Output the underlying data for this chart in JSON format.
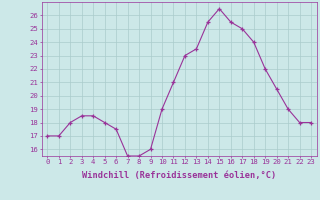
{
  "x": [
    0,
    1,
    2,
    3,
    4,
    5,
    6,
    7,
    8,
    9,
    10,
    11,
    12,
    13,
    14,
    15,
    16,
    17,
    18,
    19,
    20,
    21,
    22,
    23
  ],
  "y": [
    17,
    17,
    18,
    18.5,
    18.5,
    18,
    17.5,
    15.5,
    15.5,
    16,
    19,
    21,
    23,
    23.5,
    25.5,
    26.5,
    25.5,
    25,
    24,
    22,
    20.5,
    19,
    18,
    18
  ],
  "line_color": "#993399",
  "marker_color": "#993399",
  "bg_color": "#cce8e8",
  "grid_color": "#aacccc",
  "xlabel": "Windchill (Refroidissement éolien,°C)",
  "ylim": [
    15.5,
    27
  ],
  "yticks": [
    16,
    17,
    18,
    19,
    20,
    21,
    22,
    23,
    24,
    25,
    26
  ],
  "xlim": [
    -0.5,
    23.5
  ],
  "xticks": [
    0,
    1,
    2,
    3,
    4,
    5,
    6,
    7,
    8,
    9,
    10,
    11,
    12,
    13,
    14,
    15,
    16,
    17,
    18,
    19,
    20,
    21,
    22,
    23
  ],
  "xlabel_color": "#993399",
  "tick_color": "#993399",
  "axis_color": "#993399",
  "tick_fontsize": 5.2,
  "xlabel_fontsize": 6.2
}
